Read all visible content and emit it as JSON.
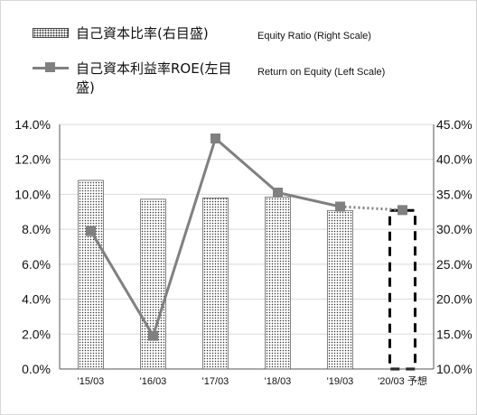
{
  "legend": {
    "bar_jp": "自己資本比率(右目盛)",
    "bar_en": "Equity Ratio (Right Scale)",
    "line_jp_1": "自己資本利益率ROE(左目",
    "line_jp_2": "盛)",
    "line_en": "Return on Equity (Left Scale)"
  },
  "chart_data": {
    "type": "bar+line",
    "categories": [
      "'15/03",
      "'16/03",
      "'17/03",
      "'18/03",
      "'19/03",
      "'20/03 予想"
    ],
    "series": [
      {
        "name": "自己資本比率(右目盛) Equity Ratio (Right Scale)",
        "type": "bar",
        "axis": "right",
        "values": [
          37.0,
          34.3,
          34.5,
          34.6,
          32.7,
          null
        ],
        "forecast_box": {
          "category_index": 5,
          "value": 32.7
        }
      },
      {
        "name": "自己資本利益率ROE(左目盛) Return on Equity (Left Scale)",
        "type": "line",
        "axis": "left",
        "values": [
          7.9,
          1.9,
          13.2,
          10.1,
          9.3,
          9.1
        ],
        "forecast_from_index": 4
      }
    ],
    "left_axis": {
      "ylim": [
        0,
        14
      ],
      "ticks": [
        "0.0%",
        "2.0%",
        "4.0%",
        "6.0%",
        "8.0%",
        "10.0%",
        "12.0%",
        "14.0%"
      ]
    },
    "right_axis": {
      "ylim": [
        10,
        45
      ],
      "ticks": [
        "10.0%",
        "15.0%",
        "20.0%",
        "25.0%",
        "30.0%",
        "35.0%",
        "40.0%",
        "45.0%"
      ]
    },
    "grid": true,
    "legend_placement": "top-left",
    "colors": {
      "line": "#808080",
      "marker": "#808080",
      "bar_border": "#333333",
      "forecast_box": "#000000",
      "grid": "#d9d9d9"
    }
  }
}
